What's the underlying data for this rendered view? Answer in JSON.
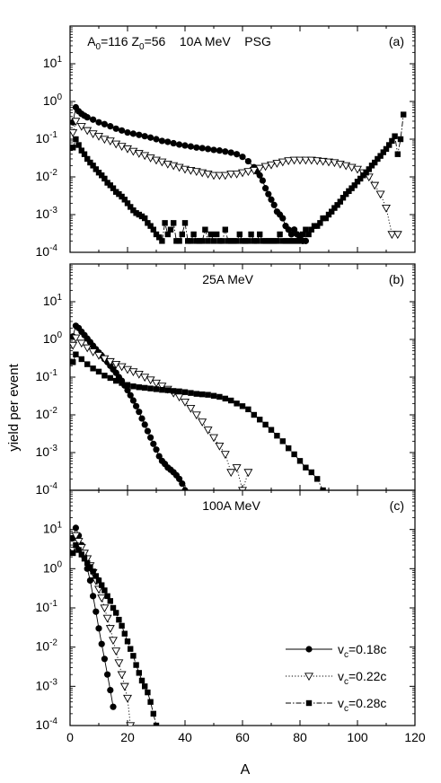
{
  "figure": {
    "ylabel": "yield per event",
    "xlabel": "A"
  },
  "chart_data": [
    {
      "type": "line",
      "panel": "(a)",
      "title": "",
      "annotation_parts": [
        {
          "t": "A"
        },
        {
          "t": "0",
          "sub": true
        },
        {
          "t": "=116 Z"
        },
        {
          "t": "0",
          "sub": true
        },
        {
          "t": "=56    10A MeV    PSG"
        }
      ],
      "annotation_text": "A0=116 Z0=56 10A MeV PSG",
      "panel_label": "(a)",
      "xlim": [
        0,
        120
      ],
      "ylim_exp": [
        -4,
        2
      ],
      "yscale": "log",
      "series": [
        {
          "name": "vc=0.18c",
          "marker": "circle",
          "line": "solid",
          "x": [
            1,
            2,
            3,
            4,
            5,
            6,
            8,
            10,
            12,
            14,
            16,
            18,
            20,
            22,
            24,
            26,
            28,
            30,
            32,
            34,
            36,
            38,
            40,
            42,
            44,
            46,
            48,
            50,
            52,
            54,
            56,
            58,
            60,
            62,
            64,
            65,
            66,
            67,
            68,
            69,
            70,
            71,
            72,
            73,
            74,
            75,
            76,
            77,
            78,
            79,
            80,
            81,
            82
          ],
          "y": [
            0.28,
            0.7,
            0.55,
            0.47,
            0.42,
            0.38,
            0.33,
            0.28,
            0.25,
            0.22,
            0.19,
            0.17,
            0.15,
            0.14,
            0.13,
            0.12,
            0.11,
            0.1,
            0.09,
            0.085,
            0.078,
            0.072,
            0.068,
            0.064,
            0.06,
            0.058,
            0.055,
            0.052,
            0.05,
            0.047,
            0.044,
            0.04,
            0.034,
            0.026,
            0.018,
            0.014,
            0.011,
            0.008,
            0.005,
            0.0035,
            0.0025,
            0.0018,
            0.0012,
            0.001,
            0.0008,
            0.0005,
            0.0004,
            0.0003,
            0.0004,
            0.0003,
            0.00025,
            0.0002,
            0.0002
          ]
        },
        {
          "name": "vc=0.22c",
          "marker": "triangle-down",
          "line": "dotted",
          "x": [
            1,
            2,
            4,
            6,
            8,
            10,
            12,
            14,
            16,
            18,
            20,
            22,
            24,
            26,
            28,
            30,
            32,
            34,
            36,
            38,
            40,
            42,
            44,
            46,
            48,
            50,
            52,
            54,
            56,
            58,
            60,
            62,
            64,
            66,
            68,
            70,
            72,
            74,
            76,
            78,
            80,
            82,
            84,
            86,
            88,
            90,
            92,
            94,
            96,
            98,
            100,
            102,
            104,
            106,
            108,
            110,
            112,
            114
          ],
          "y": [
            0.15,
            0.3,
            0.22,
            0.17,
            0.14,
            0.12,
            0.1,
            0.09,
            0.075,
            0.065,
            0.056,
            0.048,
            0.042,
            0.037,
            0.032,
            0.028,
            0.025,
            0.022,
            0.02,
            0.018,
            0.016,
            0.015,
            0.014,
            0.013,
            0.012,
            0.011,
            0.011,
            0.011,
            0.012,
            0.012,
            0.013,
            0.014,
            0.015,
            0.017,
            0.019,
            0.021,
            0.023,
            0.025,
            0.027,
            0.028,
            0.028,
            0.028,
            0.028,
            0.027,
            0.026,
            0.025,
            0.024,
            0.022,
            0.02,
            0.018,
            0.016,
            0.013,
            0.01,
            0.006,
            0.0035,
            0.0015,
            0.0003,
            0.0003
          ]
        },
        {
          "name": "vc=0.28c",
          "marker": "square",
          "line": "dashdot",
          "x": [
            1,
            2,
            3,
            4,
            5,
            6,
            7,
            8,
            9,
            10,
            11,
            12,
            13,
            14,
            15,
            16,
            17,
            18,
            19,
            20,
            21,
            22,
            23,
            24,
            25,
            26,
            27,
            28,
            29,
            30,
            31,
            32,
            33,
            34,
            35,
            36,
            37,
            38,
            39,
            40,
            41,
            42,
            43,
            44,
            45,
            46,
            47,
            48,
            49,
            50,
            51,
            52,
            53,
            54,
            55,
            56,
            57,
            58,
            59,
            60,
            61,
            62,
            63,
            64,
            65,
            66,
            67,
            68,
            69,
            70,
            71,
            72,
            73,
            74,
            75,
            76,
            77,
            78,
            79,
            80,
            81,
            82,
            83,
            84,
            85,
            86,
            87,
            88,
            89,
            90,
            91,
            92,
            93,
            94,
            95,
            96,
            97,
            98,
            99,
            100,
            101,
            102,
            103,
            104,
            105,
            106,
            107,
            108,
            109,
            110,
            111,
            112,
            113,
            114,
            115,
            116
          ],
          "y": [
            0.06,
            0.1,
            0.07,
            0.05,
            0.04,
            0.03,
            0.024,
            0.02,
            0.016,
            0.013,
            0.011,
            0.009,
            0.007,
            0.006,
            0.005,
            0.004,
            0.0035,
            0.003,
            0.0025,
            0.002,
            0.0016,
            0.0013,
            0.0011,
            0.001,
            0.0009,
            0.0008,
            0.0006,
            0.0005,
            0.0004,
            0.0003,
            0.00025,
            0.0002,
            0.0006,
            0.0003,
            0.0004,
            0.0006,
            0.0002,
            0.0002,
            0.0003,
            0.0006,
            0.0002,
            0.0002,
            0.0003,
            0.0002,
            0.0002,
            0.0002,
            0.0004,
            0.0002,
            0.0003,
            0.0002,
            0.0003,
            0.0002,
            0.0002,
            0.0004,
            0.0002,
            0.0002,
            0.0002,
            0.0002,
            0.0003,
            0.0002,
            0.0002,
            0.0002,
            0.0003,
            0.0002,
            0.0002,
            0.0003,
            0.0002,
            0.0002,
            0.0002,
            0.0002,
            0.0002,
            0.0002,
            0.0003,
            0.0002,
            0.0002,
            0.0002,
            0.0002,
            0.0002,
            0.0002,
            0.0002,
            0.0003,
            0.0004,
            0.0003,
            0.0004,
            0.0005,
            0.0005,
            0.0006,
            0.0008,
            0.0008,
            0.001,
            0.0012,
            0.0015,
            0.0018,
            0.0022,
            0.0028,
            0.0035,
            0.0042,
            0.005,
            0.006,
            0.0075,
            0.009,
            0.011,
            0.013,
            0.016,
            0.02,
            0.024,
            0.03,
            0.036,
            0.045,
            0.055,
            0.07,
            0.09,
            0.12,
            0.04,
            0.1,
            0.45
          ]
        }
      ]
    },
    {
      "type": "line",
      "panel": "(b)",
      "title": "",
      "annotation_parts": [
        {
          "t": "25A MeV"
        }
      ],
      "annotation_text": "25A MeV",
      "panel_label": "(b)",
      "xlim": [
        0,
        120
      ],
      "ylim_exp": [
        -4,
        2
      ],
      "yscale": "log",
      "series": [
        {
          "name": "vc=0.18c",
          "marker": "circle",
          "line": "solid",
          "x": [
            1,
            2,
            3,
            4,
            5,
            6,
            7,
            8,
            9,
            10,
            11,
            12,
            13,
            14,
            15,
            16,
            17,
            18,
            19,
            20,
            21,
            22,
            23,
            24,
            25,
            26,
            27,
            28,
            29,
            30,
            31,
            32,
            33,
            34,
            35,
            36,
            37,
            38,
            39,
            40
          ],
          "y": [
            1.2,
            2.3,
            2.0,
            1.6,
            1.3,
            1.05,
            0.85,
            0.68,
            0.55,
            0.45,
            0.37,
            0.3,
            0.25,
            0.2,
            0.16,
            0.13,
            0.1,
            0.08,
            0.06,
            0.045,
            0.033,
            0.024,
            0.017,
            0.012,
            0.008,
            0.0055,
            0.0037,
            0.0025,
            0.0017,
            0.0012,
            0.0008,
            0.0006,
            0.0005,
            0.0004,
            0.00035,
            0.0003,
            0.00025,
            0.0002,
            0.00015,
            0.0001
          ]
        },
        {
          "name": "vc=0.22c",
          "marker": "triangle-down",
          "line": "dotted",
          "x": [
            1,
            2,
            4,
            6,
            8,
            10,
            12,
            14,
            16,
            18,
            20,
            22,
            24,
            26,
            28,
            30,
            32,
            34,
            36,
            38,
            40,
            42,
            44,
            46,
            48,
            50,
            52,
            54,
            56,
            58,
            60,
            62
          ],
          "y": [
            0.7,
            1.1,
            0.8,
            0.6,
            0.47,
            0.38,
            0.31,
            0.26,
            0.22,
            0.19,
            0.16,
            0.14,
            0.12,
            0.1,
            0.085,
            0.07,
            0.058,
            0.048,
            0.038,
            0.03,
            0.022,
            0.015,
            0.01,
            0.0065,
            0.004,
            0.0025,
            0.0015,
            0.0009,
            0.0003,
            0.0004,
            0.0001,
            0.0003
          ]
        },
        {
          "name": "vc=0.28c",
          "marker": "square",
          "line": "dashdot",
          "x": [
            1,
            2,
            4,
            6,
            8,
            10,
            12,
            14,
            16,
            18,
            20,
            22,
            24,
            26,
            28,
            30,
            32,
            34,
            36,
            38,
            40,
            42,
            44,
            46,
            48,
            50,
            52,
            54,
            56,
            58,
            60,
            62,
            64,
            66,
            68,
            70,
            72,
            74,
            76,
            78,
            80,
            82,
            84,
            86,
            88
          ],
          "y": [
            0.25,
            0.4,
            0.3,
            0.22,
            0.17,
            0.14,
            0.11,
            0.095,
            0.08,
            0.07,
            0.062,
            0.057,
            0.054,
            0.052,
            0.05,
            0.048,
            0.046,
            0.045,
            0.043,
            0.042,
            0.04,
            0.038,
            0.036,
            0.035,
            0.034,
            0.032,
            0.03,
            0.027,
            0.024,
            0.02,
            0.017,
            0.014,
            0.01,
            0.0075,
            0.0055,
            0.004,
            0.0028,
            0.002,
            0.0013,
            0.0009,
            0.0006,
            0.0004,
            0.0003,
            0.0002,
            0.0001
          ]
        }
      ]
    },
    {
      "type": "line",
      "panel": "(c)",
      "title": "",
      "annotation_parts": [
        {
          "t": "100A MeV"
        }
      ],
      "annotation_text": "100A MeV",
      "panel_label": "(c)",
      "xlim": [
        0,
        120
      ],
      "ylim_exp": [
        -4,
        2
      ],
      "yscale": "log",
      "xticks": [
        0,
        20,
        40,
        60,
        80,
        100,
        120
      ],
      "legend": {
        "placement": "bottom-right",
        "entries": [
          {
            "prefix": "v",
            "sub": "c",
            "suffix": "=0.18c",
            "marker": "circle",
            "line": "solid"
          },
          {
            "prefix": "v",
            "sub": "c",
            "suffix": "=0.22c",
            "marker": "triangle-down",
            "line": "dotted"
          },
          {
            "prefix": "v",
            "sub": "c",
            "suffix": "=0.28c",
            "marker": "square",
            "line": "dashdot"
          }
        ]
      },
      "series": [
        {
          "name": "vc=0.18c",
          "marker": "circle",
          "line": "solid",
          "x": [
            1,
            2,
            3,
            4,
            5,
            6,
            7,
            8,
            9,
            10,
            11,
            12,
            13,
            14,
            15
          ],
          "y": [
            6,
            11,
            7,
            4,
            2,
            1,
            0.5,
            0.2,
            0.08,
            0.03,
            0.012,
            0.005,
            0.002,
            0.0008,
            0.0003
          ]
        },
        {
          "name": "vc=0.22c",
          "marker": "triangle-down",
          "line": "dotted",
          "x": [
            1,
            2,
            3,
            4,
            5,
            6,
            7,
            8,
            9,
            10,
            11,
            12,
            13,
            14,
            15,
            16,
            17,
            18,
            19,
            20,
            21
          ],
          "y": [
            3,
            7,
            5,
            3.5,
            2.5,
            1.8,
            1.2,
            0.8,
            0.5,
            0.3,
            0.18,
            0.1,
            0.055,
            0.03,
            0.015,
            0.008,
            0.004,
            0.002,
            0.001,
            0.0005,
            0.0001
          ]
        },
        {
          "name": "vc=0.28c",
          "marker": "square",
          "line": "dashdot",
          "x": [
            1,
            2,
            3,
            4,
            5,
            6,
            7,
            8,
            9,
            10,
            11,
            12,
            13,
            14,
            15,
            16,
            17,
            18,
            19,
            20,
            21,
            22,
            23,
            24,
            25,
            26,
            27,
            28,
            29,
            30
          ],
          "y": [
            2.5,
            4,
            3,
            2.3,
            1.8,
            1.4,
            1.1,
            0.85,
            0.65,
            0.5,
            0.38,
            0.28,
            0.2,
            0.15,
            0.1,
            0.075,
            0.05,
            0.035,
            0.022,
            0.014,
            0.009,
            0.006,
            0.0035,
            0.0022,
            0.0014,
            0.001,
            0.0007,
            0.0004,
            0.0002,
            0.0001
          ]
        }
      ]
    }
  ]
}
